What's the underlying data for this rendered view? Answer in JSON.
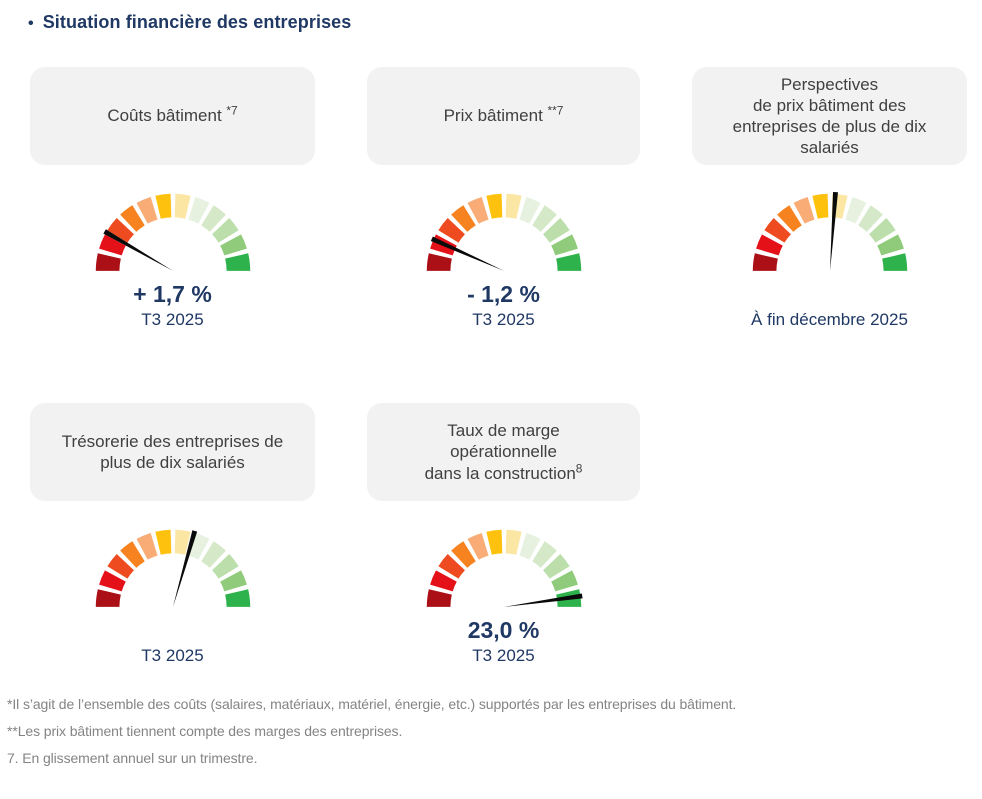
{
  "page": {
    "title": "Situation financière des entreprises",
    "bullet": "•"
  },
  "colors": {
    "navy": "#1F3864",
    "card_bg": "#F2F2F2",
    "card_text": "#404040",
    "footnote": "#848484",
    "needle": "#0A0A0A",
    "gauge_segments": [
      "#AA1016",
      "#E41119",
      "#EF4B20",
      "#F68220",
      "#F9AC76",
      "#FEC10D",
      "#FBE7A3",
      "#E6F1DF",
      "#D5E9C9",
      "#BBDEAB",
      "#8FCB7B",
      "#2EB24B"
    ]
  },
  "cards": [
    {
      "name": "couts-batiment",
      "title_lines": [
        "Coûts bâtiment"
      ],
      "sup": "*7",
      "sup_attached": false,
      "needle_angle": 150,
      "value": "+ 1,7 %",
      "period": "T3 2025"
    },
    {
      "name": "prix-batiment",
      "title_lines": [
        "Prix bâtiment"
      ],
      "sup": "**7",
      "sup_attached": false,
      "needle_angle": 156,
      "value": "- 1,2 %",
      "period": "T3 2025"
    },
    {
      "name": "perspectives-prix-batiment",
      "title_lines": [
        "Perspectives",
        "de prix bâtiment des",
        "entreprises de plus de dix",
        "salariés"
      ],
      "sup": "",
      "sup_attached": false,
      "needle_angle": 86,
      "value": "",
      "period": "À fin décembre 2025"
    },
    {
      "name": "tresorerie-entreprises",
      "title_lines": [
        "Trésorerie des entreprises de",
        "plus de dix salariés"
      ],
      "sup": "",
      "sup_attached": false,
      "needle_angle": 74,
      "value": "",
      "period": "T3 2025"
    },
    {
      "name": "taux-marge-operationnelle",
      "title_lines": [
        "Taux de marge",
        "opérationnelle",
        "dans la construction"
      ],
      "sup": "8",
      "sup_attached": true,
      "needle_angle": 8,
      "value": "23,0 %",
      "period": "T3 2025"
    }
  ],
  "footnotes": [
    "*Il s’agit de l’ensemble des coûts (salaires, matériaux, matériel, énergie, etc.) supportés par les entreprises du bâtiment.",
    "**Les prix bâtiment tiennent compte des marges des entreprises.",
    "7. En glissement annuel sur un trimestre."
  ],
  "chart_data": [
    {
      "type": "gauge",
      "title": "Coûts bâtiment *7",
      "value_label": "+ 1,7 %",
      "period": "T3 2025",
      "needle_angle_deg": 150,
      "needle_fraction_of_scale": 0.17,
      "segments": 12,
      "scale": "180° semicircle, red (left) to green (right)"
    },
    {
      "type": "gauge",
      "title": "Prix bâtiment **7",
      "value_label": "- 1,2 %",
      "period": "T3 2025",
      "needle_angle_deg": 156,
      "needle_fraction_of_scale": 0.13,
      "segments": 12,
      "scale": "180° semicircle, red (left) to green (right)"
    },
    {
      "type": "gauge",
      "title": "Perspectives de prix bâtiment des entreprises de plus de dix salariés",
      "value_label": "",
      "period": "À fin décembre 2025",
      "needle_angle_deg": 86,
      "needle_fraction_of_scale": 0.52,
      "segments": 12,
      "scale": "180° semicircle, red (left) to green (right)"
    },
    {
      "type": "gauge",
      "title": "Trésorerie des entreprises de plus de dix salariés",
      "value_label": "",
      "period": "T3 2025",
      "needle_angle_deg": 74,
      "needle_fraction_of_scale": 0.59,
      "segments": 12,
      "scale": "180° semicircle, red (left) to green (right)"
    },
    {
      "type": "gauge",
      "title": "Taux de marge opérationnelle dans la construction⁸",
      "value_label": "23,0 %",
      "period": "T3 2025",
      "needle_angle_deg": 8,
      "needle_fraction_of_scale": 0.96,
      "segments": 12,
      "scale": "180° semicircle, red (left) to green (right)"
    }
  ]
}
